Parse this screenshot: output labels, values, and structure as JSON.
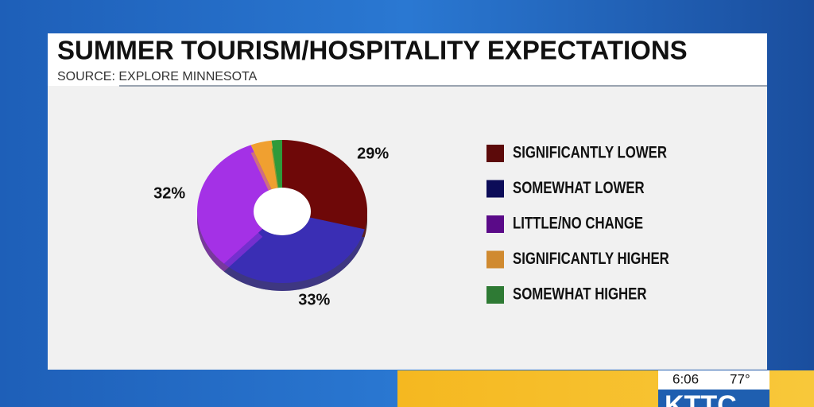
{
  "chart_data": {
    "type": "pie",
    "title": "SUMMER TOURISM/HOSPITALITY EXPECTATIONS",
    "subtitle": "SOURCE: EXPLORE MINNESOTA",
    "categories": [
      "SIGNIFICANTLY LOWER",
      "SOMEWHAT LOWER",
      "LITTLE/NO CHANGE",
      "SIGNIFICANTLY HIGHER",
      "SOMEWHAT HIGHER"
    ],
    "values": [
      29,
      33,
      32,
      4,
      2
    ],
    "value_labels": [
      "29%",
      "33%",
      "32%",
      null,
      null
    ],
    "colors": [
      "#6e0808",
      "#3a2eb4",
      "#a431e6",
      "#f0a030",
      "#2e9a3a"
    ],
    "legend_colors": [
      "#5c0a0a",
      "#0c0c58",
      "#5a0a88",
      "#d08a30",
      "#2e7a34"
    ],
    "donut": true
  },
  "ticker": {
    "time": "6:06",
    "temperature": "77°",
    "logo": "KTTC"
  }
}
